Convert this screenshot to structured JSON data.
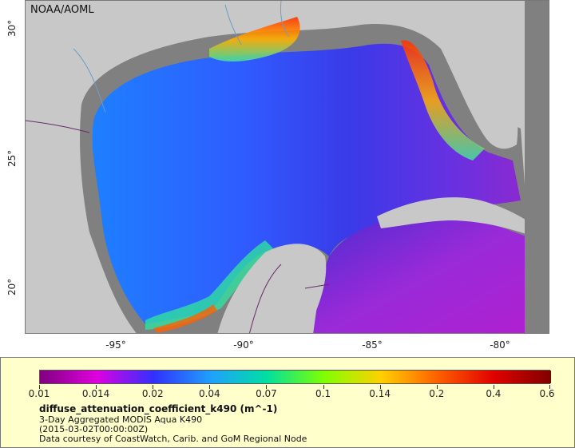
{
  "map": {
    "credit": "NOAA/AOML",
    "lat_ticks": [
      "30°",
      "25°",
      "20°"
    ],
    "lon_ticks": [
      "-95°",
      "-90°",
      "-85°",
      "-80°"
    ],
    "colors": {
      "land": "#c8c8c8",
      "no_data": "#808080",
      "border": "#6b2a6b",
      "river": "#6a9ec9"
    }
  },
  "legend": {
    "colorbar_labels": [
      "0.01",
      "0.014",
      "0.02",
      "0.04",
      "0.07",
      "0.1",
      "0.14",
      "0.2",
      "0.4",
      "0.6"
    ],
    "colorbar_colors": [
      "#800080",
      "#e000e0",
      "#3030ff",
      "#20a0ff",
      "#00e0a0",
      "#80ff00",
      "#ffd000",
      "#ff6000",
      "#e00000",
      "#800000"
    ],
    "variable": "diffuse_attenuation_coefficient_k490 (m^-1)",
    "line1": "3-Day Aggregated MODIS Aqua K490",
    "line2": "(2015-03-02T00:00:00Z)",
    "line3": "Data courtesy of CoastWatch, Carib. and GoM Regional Node"
  }
}
